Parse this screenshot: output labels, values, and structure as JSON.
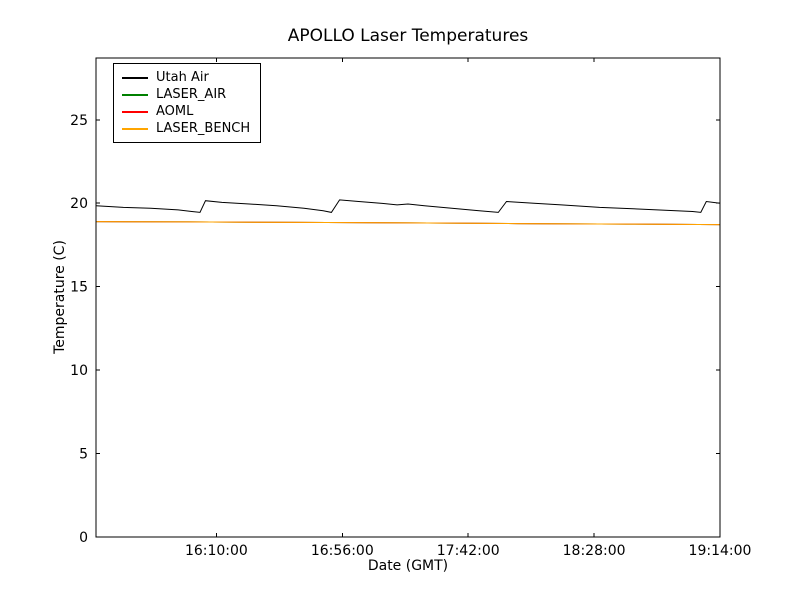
{
  "page": {
    "background": "#ffffff"
  },
  "chart_data": {
    "type": "line",
    "title": "APOLLO Laser Temperatures",
    "xlabel": "Date (GMT)",
    "ylabel": "Temperature (C)",
    "xlim": [
      "15:26:00",
      "19:14:00"
    ],
    "ylim": [
      0,
      28.7
    ],
    "yticks": [
      0,
      5,
      10,
      15,
      20,
      25
    ],
    "xticks": [
      "16:10:00",
      "16:56:00",
      "17:42:00",
      "18:28:00",
      "19:14:00"
    ],
    "grid": false,
    "legend_position": "upper left",
    "series": [
      {
        "name": "Utah Air",
        "color": "#000000",
        "points": [
          [
            "15:26:00",
            19.85
          ],
          [
            "15:36:00",
            19.75
          ],
          [
            "15:46:00",
            19.7
          ],
          [
            "15:56:00",
            19.6
          ],
          [
            "16:01:00",
            19.5
          ],
          [
            "16:04:00",
            19.45
          ],
          [
            "16:06:00",
            20.15
          ],
          [
            "16:12:00",
            20.05
          ],
          [
            "16:22:00",
            19.95
          ],
          [
            "16:32:00",
            19.85
          ],
          [
            "16:42:00",
            19.7
          ],
          [
            "16:49:00",
            19.55
          ],
          [
            "16:52:00",
            19.45
          ],
          [
            "16:55:00",
            20.2
          ],
          [
            "17:02:00",
            20.1
          ],
          [
            "17:10:00",
            20.0
          ],
          [
            "17:16:00",
            19.9
          ],
          [
            "17:20:00",
            19.95
          ],
          [
            "17:26:00",
            19.85
          ],
          [
            "17:36:00",
            19.7
          ],
          [
            "17:46:00",
            19.55
          ],
          [
            "17:53:00",
            19.45
          ],
          [
            "17:56:00",
            20.1
          ],
          [
            "18:06:00",
            20.0
          ],
          [
            "18:16:00",
            19.9
          ],
          [
            "18:30:00",
            19.75
          ],
          [
            "18:44:00",
            19.65
          ],
          [
            "18:58:00",
            19.55
          ],
          [
            "19:04:00",
            19.5
          ],
          [
            "19:07:00",
            19.45
          ],
          [
            "19:09:00",
            20.1
          ],
          [
            "19:14:00",
            20.0
          ]
        ]
      },
      {
        "name": "LASER_AIR",
        "color": "#008000",
        "points": [
          [
            "15:26:00",
            18.9
          ],
          [
            "16:00:00",
            18.88
          ],
          [
            "16:40:00",
            18.85
          ],
          [
            "17:20:00",
            18.82
          ],
          [
            "18:00:00",
            18.78
          ],
          [
            "18:40:00",
            18.75
          ],
          [
            "19:14:00",
            18.72
          ]
        ]
      },
      {
        "name": "AOML",
        "color": "#ff0000",
        "points": [
          [
            "15:26:00",
            18.9
          ],
          [
            "16:00:00",
            18.88
          ],
          [
            "16:40:00",
            18.85
          ],
          [
            "17:20:00",
            18.82
          ],
          [
            "18:00:00",
            18.78
          ],
          [
            "18:40:00",
            18.75
          ],
          [
            "19:14:00",
            18.72
          ]
        ]
      },
      {
        "name": "LASER_BENCH",
        "color": "#ffa500",
        "points": [
          [
            "15:26:00",
            18.9
          ],
          [
            "16:00:00",
            18.88
          ],
          [
            "16:40:00",
            18.85
          ],
          [
            "17:20:00",
            18.82
          ],
          [
            "18:00:00",
            18.78
          ],
          [
            "18:40:00",
            18.75
          ],
          [
            "19:14:00",
            18.72
          ]
        ]
      }
    ]
  }
}
